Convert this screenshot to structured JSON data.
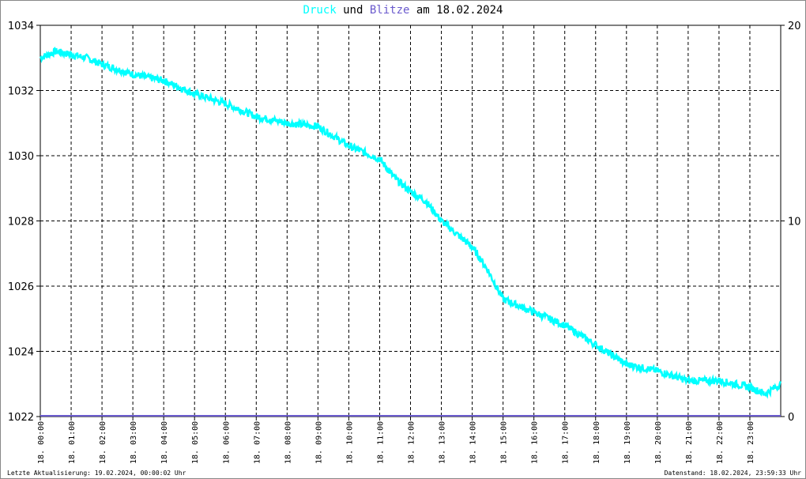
{
  "chart_data": {
    "type": "line",
    "title": {
      "part1": "Druck",
      "part2": "und",
      "part3": "Blitze",
      "part4": "am 18.02.2024"
    },
    "colors": {
      "pressure": "#00ffff",
      "lightning": "#6a5acd",
      "grid": "#000000"
    },
    "y_left": {
      "range": [
        1022,
        1034
      ],
      "ticks": [
        "1022",
        "1024",
        "1026",
        "1028",
        "1030",
        "1032",
        "1034"
      ]
    },
    "y_right": {
      "range": [
        0,
        20
      ],
      "ticks": [
        "0",
        "10",
        "20"
      ]
    },
    "x_ticks": [
      "18. 00:00",
      "18. 01:00",
      "18. 02:00",
      "18. 03:00",
      "18. 04:00",
      "18. 05:00",
      "18. 06:00",
      "18. 07:00",
      "18. 08:00",
      "18. 09:00",
      "18. 10:00",
      "18. 11:00",
      "18. 12:00",
      "18. 13:00",
      "18. 14:00",
      "18. 15:00",
      "18. 16:00",
      "18. 17:00",
      "18. 18:00",
      "18. 19:00",
      "18. 20:00",
      "18. 21:00",
      "18. 22:00",
      "18. 23:00"
    ],
    "x_range_hours": [
      0,
      24
    ],
    "series": [
      {
        "name": "Druck",
        "x_hours": [
          0,
          0.5,
          1,
          1.5,
          2,
          3,
          4,
          5,
          6,
          7,
          8,
          9,
          10,
          11,
          11.5,
          12,
          12.5,
          13,
          14,
          14.5,
          15,
          16,
          17,
          18,
          19,
          20,
          21,
          22,
          23,
          23.5,
          24
        ],
        "values": [
          1033.0,
          1033.2,
          1033.1,
          1033.0,
          1032.8,
          1032.5,
          1032.3,
          1031.9,
          1031.6,
          1031.2,
          1031.0,
          1030.9,
          1030.3,
          1029.9,
          1029.3,
          1028.9,
          1028.6,
          1028.0,
          1027.2,
          1026.5,
          1025.6,
          1025.2,
          1024.8,
          1024.2,
          1023.6,
          1023.4,
          1023.1,
          1023.1,
          1022.9,
          1022.7,
          1023.0
        ]
      },
      {
        "name": "Blitze",
        "x_hours": [
          0,
          24
        ],
        "values": [
          0,
          0
        ]
      }
    ]
  },
  "footer": {
    "left": "Letzte Aktualisierung: 19.02.2024, 00:00:02 Uhr",
    "right": "Datenstand: 18.02.2024, 23:59:33 Uhr"
  }
}
